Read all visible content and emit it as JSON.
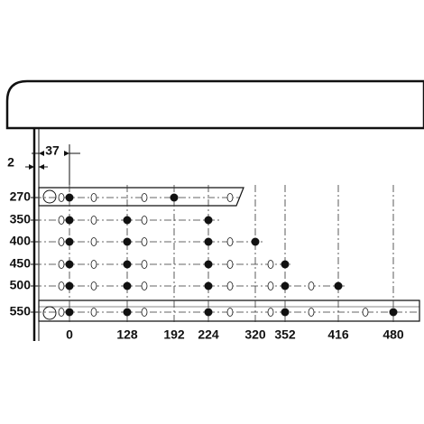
{
  "dimensions": {
    "offset": "2",
    "setback": "37"
  },
  "rows": [
    {
      "label": "270"
    },
    {
      "label": "350"
    },
    {
      "label": "400"
    },
    {
      "label": "450"
    },
    {
      "label": "500"
    },
    {
      "label": "550"
    }
  ],
  "columns": [
    {
      "label": "0"
    },
    {
      "label": "128"
    },
    {
      "label": "192"
    },
    {
      "label": "224"
    },
    {
      "label": "320"
    },
    {
      "label": "352"
    },
    {
      "label": "416"
    },
    {
      "label": "480"
    }
  ]
}
